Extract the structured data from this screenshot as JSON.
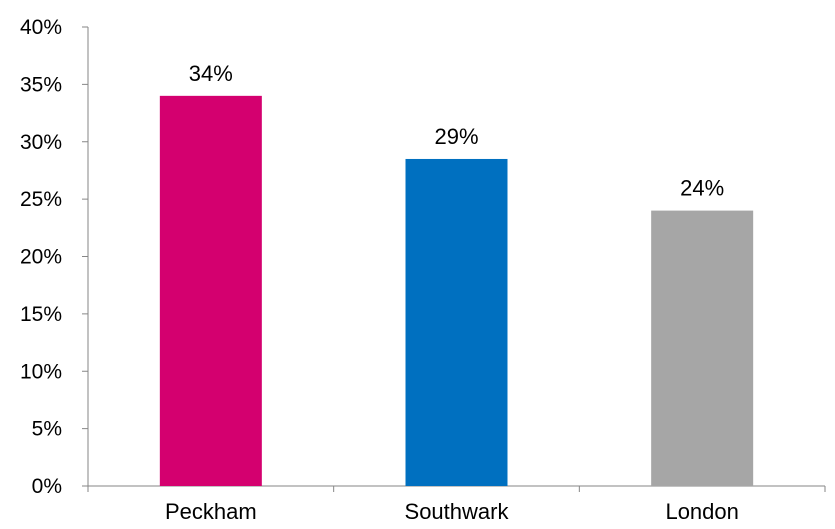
{
  "chart_data": {
    "type": "bar",
    "categories": [
      "Peckham",
      "Southwark",
      "London"
    ],
    "values": [
      34,
      28.5,
      24
    ],
    "data_labels": [
      "34%",
      "29%",
      "24%"
    ],
    "colors": [
      "#D4006F",
      "#0070C0",
      "#A6A6A6"
    ],
    "title": "",
    "xlabel": "",
    "ylabel": "",
    "ylim": [
      0,
      40
    ],
    "yticks": [
      0,
      5,
      10,
      15,
      20,
      25,
      30,
      35,
      40
    ],
    "ytick_labels": [
      "0%",
      "5%",
      "10%",
      "15%",
      "20%",
      "25%",
      "30%",
      "35%",
      "40%"
    ],
    "grid": false,
    "legend": "none",
    "axis_color": "#868686"
  }
}
